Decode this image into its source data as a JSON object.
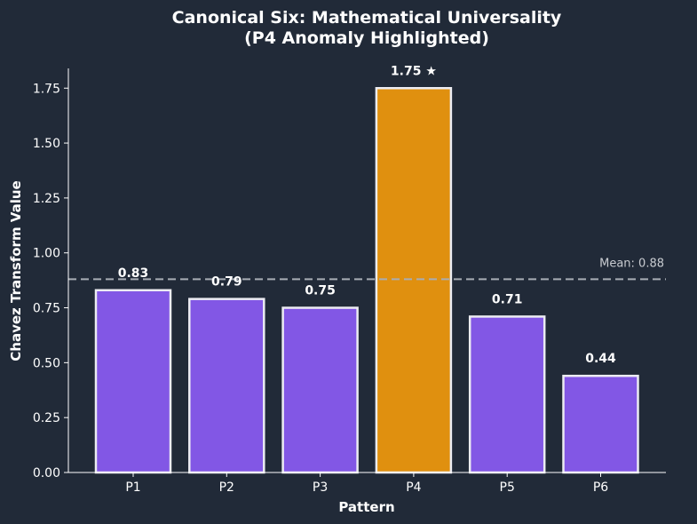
{
  "chart_data": {
    "type": "bar",
    "title": "Canonical Six: Mathematical Universality",
    "subtitle": "(P4 Anomaly Highlighted)",
    "xlabel": "Pattern",
    "ylabel": "Chavez Transform Value",
    "categories": [
      "P1",
      "P2",
      "P3",
      "P4",
      "P5",
      "P6"
    ],
    "values": [
      0.83,
      0.79,
      0.75,
      1.75,
      0.71,
      0.44
    ],
    "data_labels": [
      "0.83",
      "0.79",
      "0.75",
      "1.75 ★",
      "0.71",
      "0.44"
    ],
    "highlight_index": 3,
    "ylim": [
      0,
      1.84
    ],
    "yticks": [
      0.0,
      0.25,
      0.5,
      0.75,
      1.0,
      1.25,
      1.5,
      1.75
    ],
    "ytick_labels": [
      "0.00",
      "0.25",
      "0.50",
      "0.75",
      "1.00",
      "1.25",
      "1.50",
      "1.75"
    ],
    "mean": {
      "value": 0.88,
      "label": "Mean: 0.88"
    },
    "grid": false,
    "colors": {
      "bar": "#8257e5",
      "highlight": "#e0900f",
      "bar_edge": "#ececf2",
      "mean_line": "#a8adb5",
      "background": "#212a38"
    }
  }
}
